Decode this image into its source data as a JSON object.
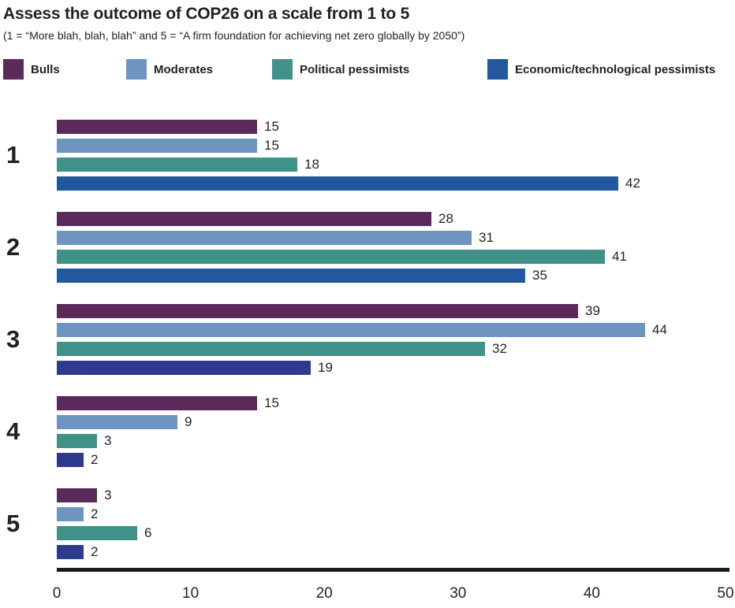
{
  "title": "Assess the outcome of COP26 on a scale from 1 to 5",
  "subtitle": "(1 = “More blah, blah, blah” and 5 = “A firm foundation for achieving net zero globally by 2050”)",
  "colors": {
    "text": "#231f20",
    "axis_line": "#1a1a1a",
    "bulls": "#5b2a5b",
    "moderates": "#6e94c0",
    "political_pessimists": "#3f918a",
    "economic_pessimists": "#2158a0",
    "economic_pessimists_alt": "#2e3a8e"
  },
  "chart_data": {
    "type": "bar",
    "orientation": "horizontal",
    "title": "Assess the outcome of COP26 on a scale from 1 to 5",
    "subtitle": "(1 = “More blah, blah, blah” and 5 = “A firm foundation for achieving net zero globally by 2050”)",
    "categories": [
      "1",
      "2",
      "3",
      "4",
      "5"
    ],
    "series": [
      {
        "name": "Bulls",
        "color": "#5b2a5b",
        "values": [
          15,
          28,
          39,
          15,
          3
        ]
      },
      {
        "name": "Moderates",
        "color": "#6e94c0",
        "values": [
          15,
          31,
          44,
          9,
          2
        ]
      },
      {
        "name": "Political pessimists",
        "color": "#3f918a",
        "values": [
          18,
          41,
          32,
          3,
          6
        ]
      },
      {
        "name": "Economic/technological pessimists",
        "color": "#2158a0",
        "bar_colors": [
          "#2158a0",
          "#2158a0",
          "#2e3a8e",
          "#2e3a8e",
          "#2e3a8e"
        ],
        "values": [
          42,
          35,
          19,
          2,
          2
        ]
      }
    ],
    "xlim": [
      0,
      50
    ],
    "x_ticks": [
      "0",
      "10",
      "20",
      "30",
      "40",
      "50"
    ],
    "value_labels": true,
    "legend_position": "top",
    "grid": false
  }
}
